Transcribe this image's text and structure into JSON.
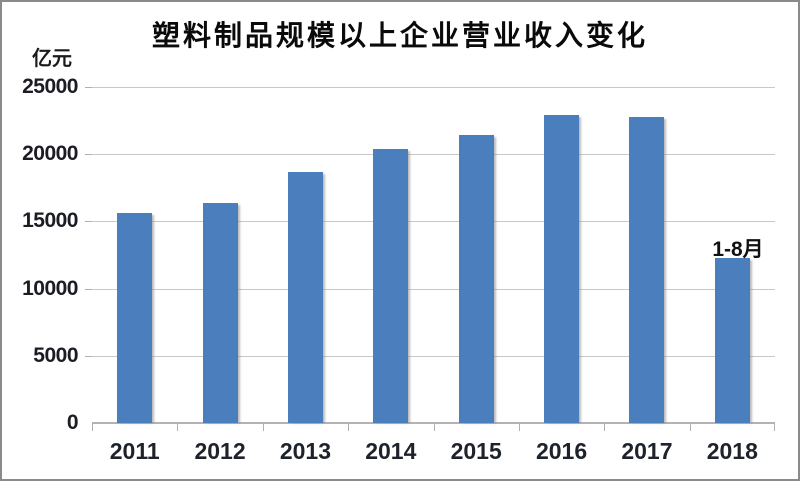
{
  "chart_data": {
    "type": "bar",
    "title": "塑料制品规模以上企业营业收入变化",
    "unit": "亿元",
    "categories": [
      "2011",
      "2012",
      "2013",
      "2014",
      "2015",
      "2016",
      "2017",
      "2018"
    ],
    "values": [
      15600,
      16400,
      18700,
      20400,
      21400,
      22900,
      22800,
      12300
    ],
    "ylabel": "亿元",
    "xlabel": "",
    "ylim": [
      0,
      25000
    ],
    "yticks": [
      0,
      5000,
      10000,
      15000,
      20000,
      25000
    ],
    "grid": "horizontal",
    "legend": "none",
    "annotations": [
      {
        "text": "1-8月",
        "category": "2018",
        "position": "above-bar"
      }
    ],
    "bar_color": "#4a7ebc",
    "gridline_color": "#c8c8c8",
    "axis_color": "#b3b3b3",
    "text_color": "#1c1c24",
    "title_color": "#0a0a0a"
  }
}
